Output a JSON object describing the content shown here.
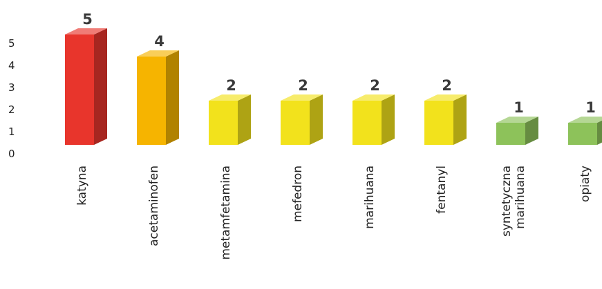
{
  "chart_data": {
    "type": "bar",
    "style": "3d-column",
    "categories": [
      "katyna",
      "acetaminofen",
      "metamfetamina",
      "mefedron",
      "marihuana",
      "fentanyl",
      "syntetyczna marihuana",
      "opiaty"
    ],
    "values": [
      5,
      4,
      2,
      2,
      2,
      2,
      1,
      1
    ],
    "bar_colors": [
      "#e8352c",
      "#f6b400",
      "#f2e21c",
      "#f2e21c",
      "#f2e21c",
      "#f2e21c",
      "#8dc25a",
      "#8dc25a"
    ],
    "yticks": [
      "0",
      "1",
      "2",
      "3",
      "4",
      "5"
    ],
    "ylim": [
      0,
      5
    ],
    "title": "",
    "xlabel": "",
    "ylabel": "",
    "grid": false,
    "legend": "none"
  }
}
